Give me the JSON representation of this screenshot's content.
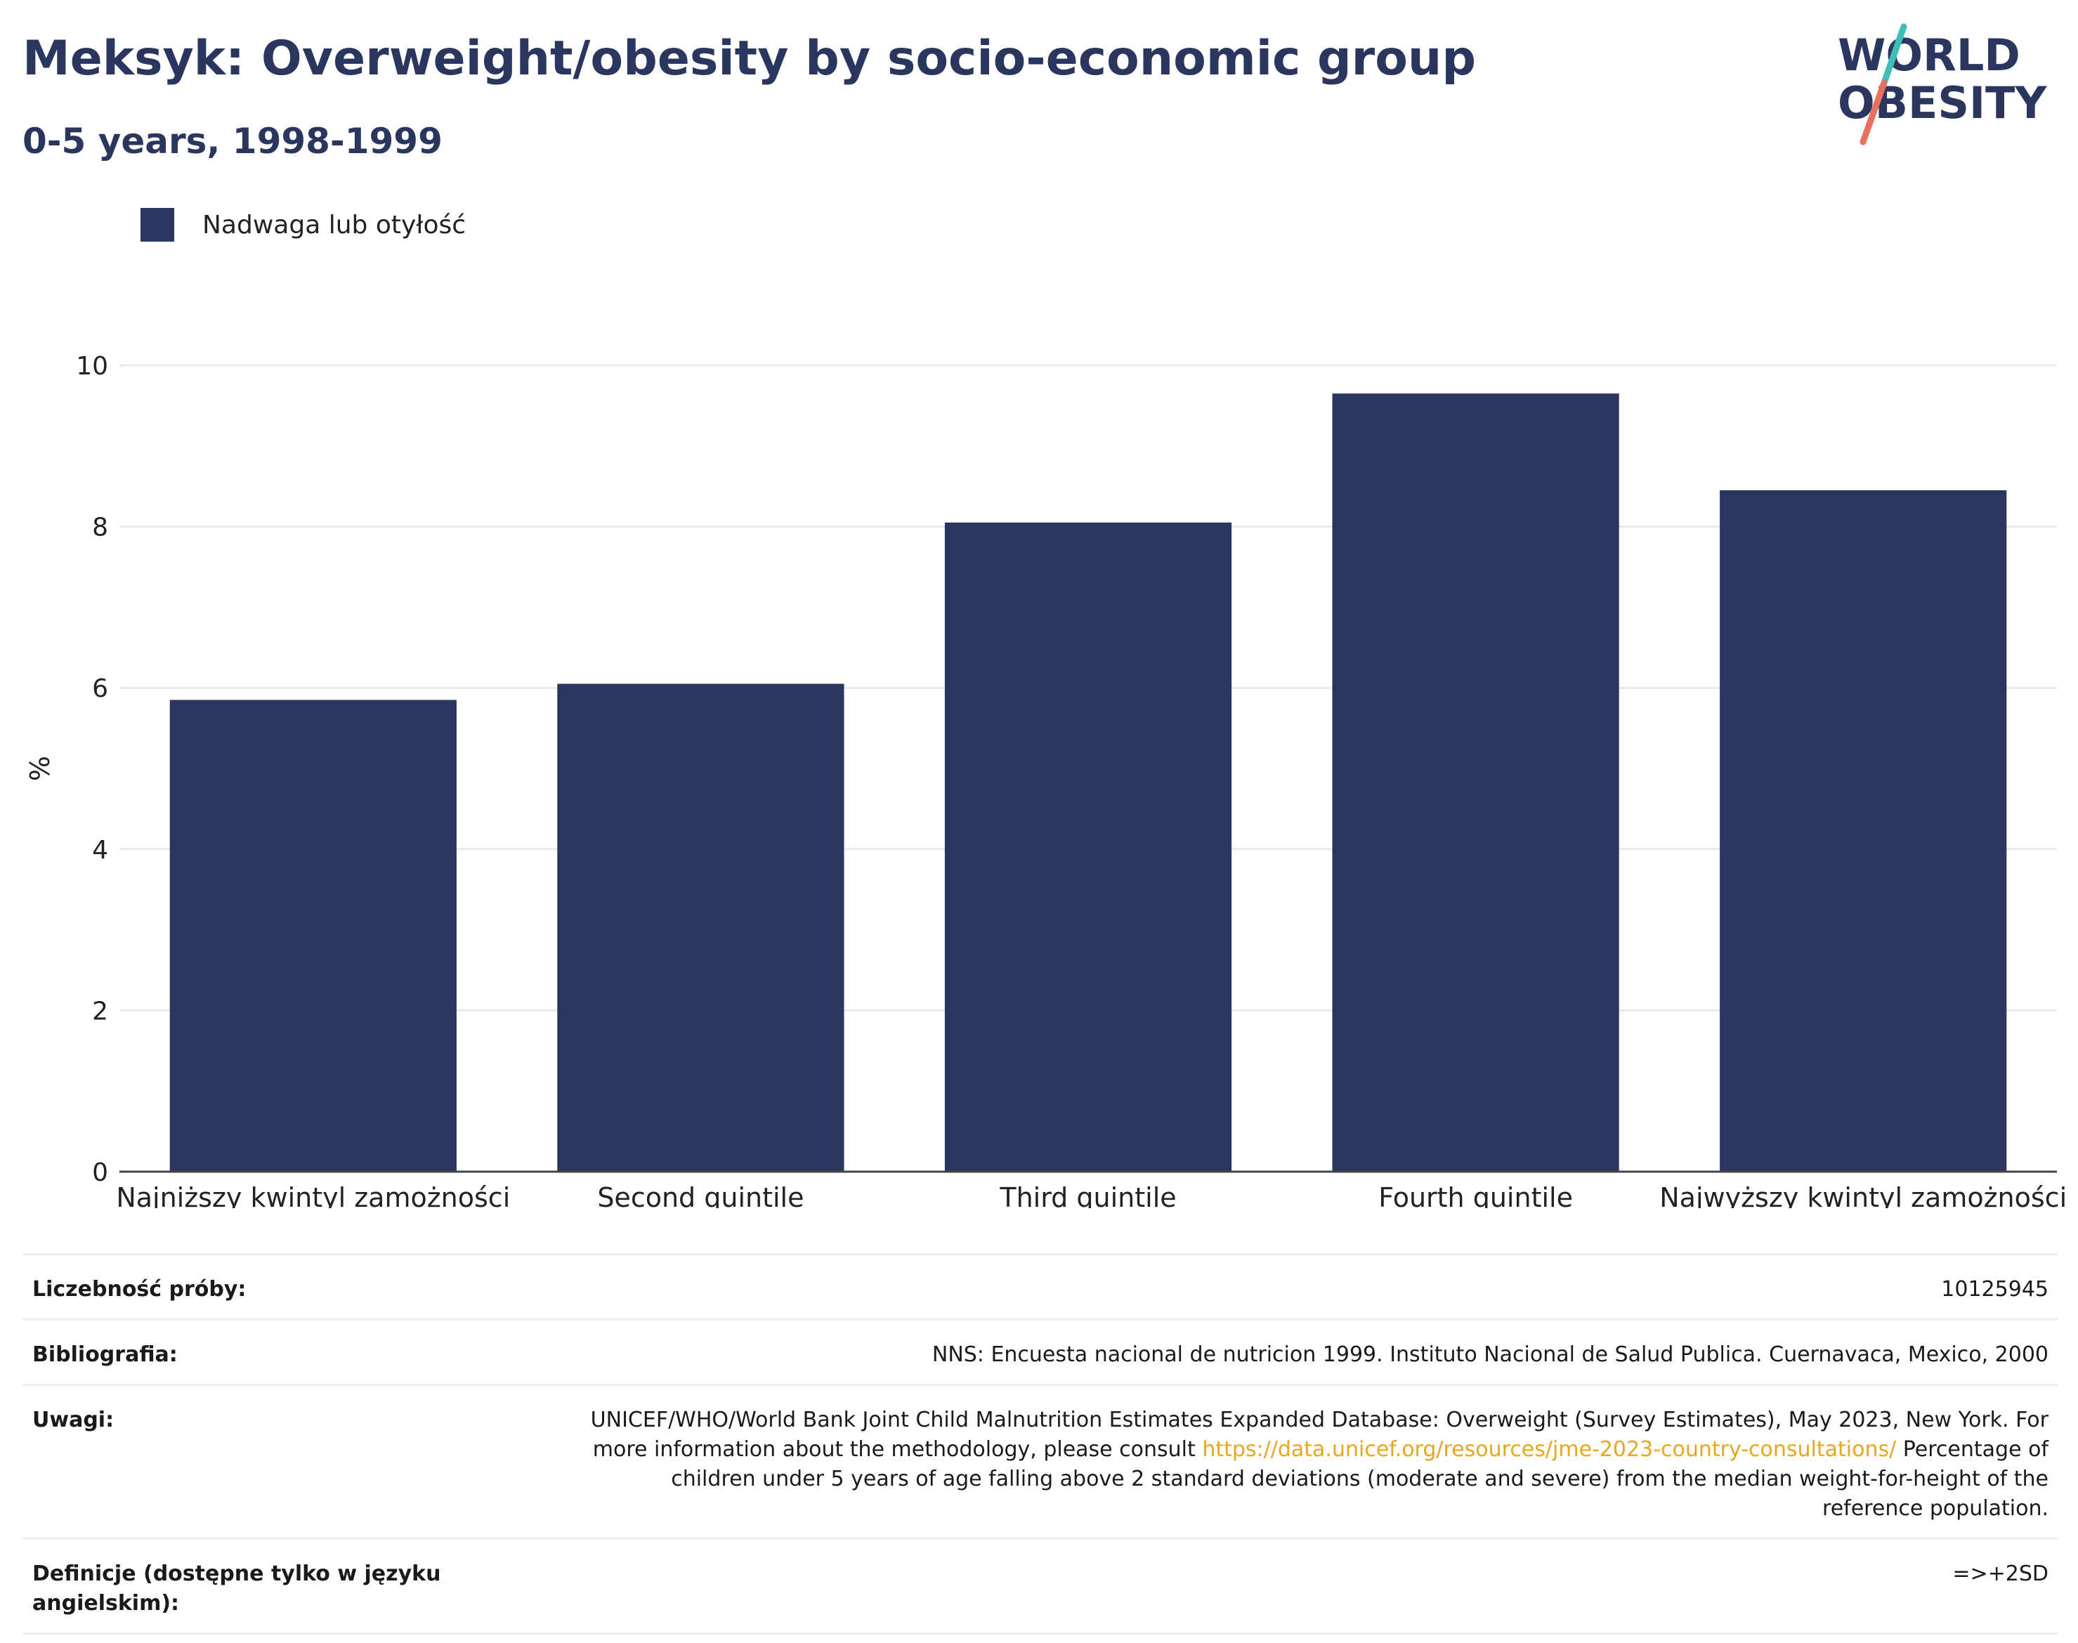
{
  "header": {
    "title": "Meksyk: Overweight/obesity by socio-economic group",
    "subtitle": "0-5 years, 1998-1999"
  },
  "logo": {
    "line1": "WORLD",
    "line2": "OBESITY",
    "colors": {
      "text": "#2b365f",
      "slash_top": "#3dbfb8",
      "slash_bottom": "#e8705e"
    }
  },
  "legend": {
    "label": "Nadwaga lub otyłość",
    "color": "#2b365f"
  },
  "chart_data": {
    "type": "bar",
    "categories": [
      "Najniższy kwintyl zamożności",
      "Second quintile",
      "Third quintile",
      "Fourth quintile",
      "Najwyższy kwintyl zamożności"
    ],
    "series": [
      {
        "name": "Nadwaga lub otyłość",
        "values": [
          5.85,
          6.05,
          8.05,
          9.65,
          8.45
        ],
        "color": "#2b365f"
      }
    ],
    "ylabel": "%",
    "ylim": [
      0,
      10
    ],
    "yticks": [
      0,
      2,
      4,
      6,
      8,
      10
    ],
    "grid": true,
    "legend_position": "top-left"
  },
  "info": {
    "sample_label": "Liczebność próby:",
    "sample_value": "10125945",
    "bibliography_label": "Bibliografia:",
    "bibliography_value": "NNS: Encuesta nacional de nutricion 1999. Instituto Nacional de Salud Publica. Cuernavaca, Mexico, 2000",
    "notes_label": "Uwagi:",
    "notes_text_1": "UNICEF/WHO/World Bank Joint Child Malnutrition Estimates Expanded Database: Overweight (Survey Estimates), May 2023, New York. For more information about the methodology, please consult",
    "notes_link": "https://data.unicef.org/resources/jme-2023-country-consultations/",
    "notes_text_2": "Percentage of children under 5 years of age falling above 2 standard deviations (moderate and severe) from the median weight-for-height of the reference population.",
    "definition_label": "Definicje (dostępne tylko w języku angielskim):",
    "definition_value": "=>+2SD",
    "link_color": "#e5a820"
  }
}
